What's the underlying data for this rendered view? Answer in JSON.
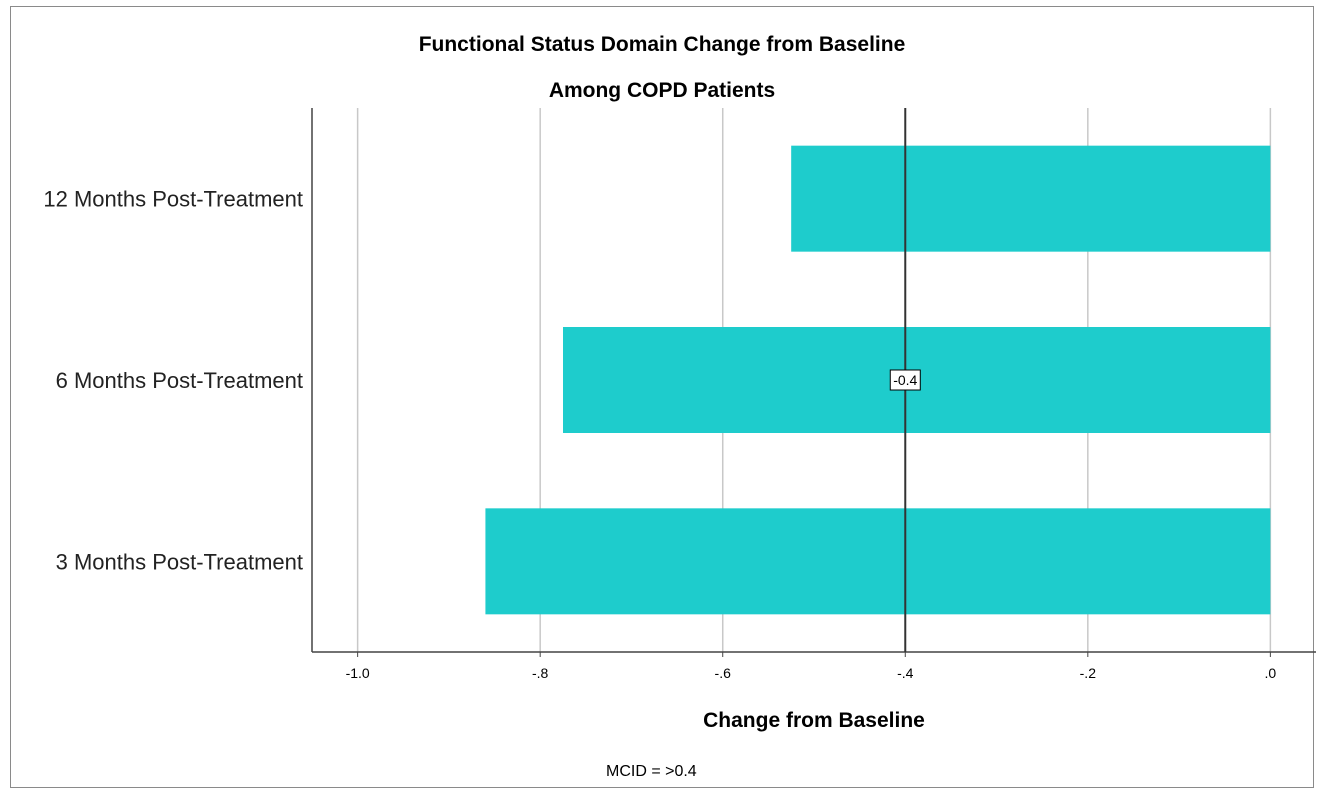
{
  "chart_data": {
    "type": "bar",
    "orientation": "horizontal",
    "title": "Functional Status Domain Change from Baseline",
    "subtitle": "Among COPD Patients",
    "xlabel": "Change from Baseline",
    "ylabel": "",
    "categories": [
      "12 Months Post-Treatment",
      "6 Months Post-Treatment",
      "3 Months Post-Treatment"
    ],
    "values": [
      -0.525,
      -0.775,
      -0.86
    ],
    "xlim": [
      -1.05,
      0.05
    ],
    "xticks": [
      -1.0,
      -0.8,
      -0.6,
      -0.4,
      -0.2,
      0.0
    ],
    "xtick_labels": [
      "-1.0",
      "-.8",
      "-.6",
      "-.4",
      "-.2",
      ".0"
    ],
    "grid": "vertical",
    "bar_color": "#1ECCCC",
    "reference_line": {
      "value": -0.4,
      "label": "-0.4",
      "color": "#333333"
    },
    "footnote": "MCID = >0.4"
  }
}
